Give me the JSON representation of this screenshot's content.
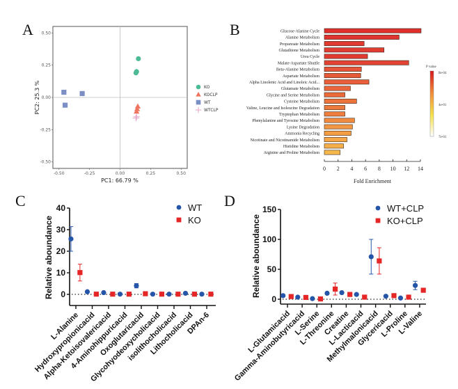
{
  "chart_data": [
    {
      "panel": "A",
      "type": "scatter",
      "title": "",
      "xlabel": "PC1:  66.79 %",
      "ylabel": "PC2:  25.3 %",
      "xlim": [
        -0.55,
        0.55
      ],
      "ylim": [
        -0.55,
        0.55
      ],
      "xticks": [
        "-0.50",
        "-0.25",
        "0.00",
        "0.25",
        "0.50"
      ],
      "xtick_values": [
        -0.5,
        -0.25,
        0,
        0.25,
        0.5
      ],
      "yticks": [
        "0.50",
        "0.25",
        "0.00",
        "-0.25",
        "-0.50"
      ],
      "ytick_values": [
        0.5,
        0.25,
        0,
        -0.25,
        -0.5
      ],
      "grid": false,
      "reference_lines": {
        "x": 0,
        "y": 0
      },
      "legend_position": "right",
      "series": [
        {
          "name": "KO",
          "marker": "circle",
          "color": "#4dbb95",
          "points": [
            [
              0.15,
              0.3
            ],
            [
              0.135,
              0.2
            ],
            [
              0.13,
              0.19
            ]
          ]
        },
        {
          "name": "KOCLP",
          "marker": "triangle",
          "color": "#ef7560",
          "points": [
            [
              0.145,
              -0.07
            ],
            [
              0.14,
              -0.09
            ],
            [
              0.135,
              -0.11
            ]
          ]
        },
        {
          "name": "WT",
          "marker": "square",
          "color": "#7b8fc4",
          "points": [
            [
              -0.46,
              0.04
            ],
            [
              -0.31,
              0.03
            ],
            [
              -0.45,
              -0.06
            ]
          ]
        },
        {
          "name": "WTCLP",
          "marker": "plus",
          "color": "#e4a3c6",
          "points": [
            [
              0.13,
              -0.16
            ],
            [
              0.135,
              -0.15
            ]
          ]
        }
      ]
    },
    {
      "panel": "B",
      "type": "bar",
      "orientation": "horizontal",
      "title": "",
      "xlabel": "Fold Enrichment",
      "ylabel": "",
      "xlim": [
        0,
        14
      ],
      "xticks": [
        "0",
        "2",
        "4",
        "6",
        "8",
        "10",
        "12",
        "14"
      ],
      "xtick_values": [
        0,
        2,
        4,
        6,
        8,
        10,
        12,
        14
      ],
      "categories": [
        "Glucose-Alanine Cycle",
        "Alanine Metabolism",
        "Propanoate Metabolism",
        "Glutathione Metabolism",
        "Urea Cycle",
        "Malate-Aspartate Shuttle",
        "Beta-Alanine Metabolism",
        "Aspartate Metabolism",
        "Alpha Linolenic Acid and Linoleic Acid...",
        "Glutamate Metabolism",
        "Glycine and Serine Metabolism",
        "Cysteine Metabolism",
        "Valine, Leucine and Isoleucine Degradation",
        "Tryptophan Metabolism",
        "Phenylalanine and Tyrosine Metabolism",
        "Lysine Degradation",
        "Ammonia Recycling",
        "Nicotinate and Nicotinamide Metabolism",
        "Histidine Metabolism",
        "Arginine and Proline Metabolism"
      ],
      "values": [
        14.1,
        10.9,
        5.8,
        8.7,
        6.3,
        12.3,
        5.4,
        5.3,
        6.5,
        3.8,
        3.0,
        4.7,
        3.0,
        3.0,
        4.4,
        4.1,
        3.9,
        3.3,
        2.8,
        2.3
      ],
      "bar_colors": [
        "#de2f2c",
        "#df3430",
        "#e03a31",
        "#e03c32",
        "#df3b31",
        "#e24434",
        "#e65537",
        "#e75a38",
        "#e85e39",
        "#ea653a",
        "#ea6a3a",
        "#ec743c",
        "#ed7a3d",
        "#ee7e3d",
        "#f08a3f",
        "#f29641",
        "#f49d43",
        "#f5a646",
        "#f5ae48",
        "#f4b74b"
      ],
      "colorbar": {
        "title": "P value",
        "labels": [
          "8e-04",
          "4e-01",
          "7e-01"
        ],
        "colors": [
          "#d7191c",
          "#f28c3b",
          "#f5e14a",
          "#ffffff"
        ]
      }
    },
    {
      "panel": "C",
      "type": "scatter",
      "title": "",
      "xlabel": "",
      "ylabel": "Relative aboundance",
      "ylim": [
        -4,
        40
      ],
      "yticks": [
        "0",
        "10",
        "20",
        "30",
        "40"
      ],
      "ytick_values": [
        0,
        10,
        20,
        30,
        40
      ],
      "grid": false,
      "reference_line_y": 0,
      "legend_position": "top-right",
      "categories": [
        "L-Alanine",
        "Hydroxypropionicacid",
        "Alpha-Ketoisovalericacid",
        "4-Aminohippuricacid",
        "Oxoglutaricacid",
        "Glycohyodeoxycholicacid",
        "isolithocholicacid",
        "Lithocholicacid",
        "DPAn-6"
      ],
      "series": [
        {
          "name": "WT",
          "marker": "circle",
          "color": "#2455a8",
          "values": [
            25.7,
            1.2,
            0.8,
            0.1,
            4.0,
            0.1,
            0.1,
            0.5,
            0.1
          ],
          "error": [
            5.7,
            0.3,
            0.2,
            0.1,
            1.0,
            0.1,
            0.1,
            0.2,
            0.1
          ]
        },
        {
          "name": "KO",
          "marker": "square",
          "color": "#e52626",
          "values": [
            10.1,
            0.1,
            0.1,
            0.1,
            0.3,
            0.1,
            0.1,
            0.1,
            0.1
          ],
          "error": [
            3.9,
            0.1,
            0.1,
            0.1,
            0.1,
            0.1,
            0.1,
            0.1,
            0.1
          ]
        }
      ]
    },
    {
      "panel": "D",
      "type": "scatter",
      "title": "",
      "xlabel": "",
      "ylabel": "Relative aboundance",
      "ylim": [
        -10,
        150
      ],
      "yticks": [
        "0",
        "50",
        "100",
        "150"
      ],
      "ytick_values": [
        0,
        50,
        100,
        150
      ],
      "grid": false,
      "reference_line_y": 0,
      "legend_position": "top-right",
      "categories": [
        "L-Glutamicacid",
        "Gamma-Aminobutyricacid",
        "L-Serine",
        "L-Threonine",
        "Creatine",
        "L-Lacticacid",
        "Methylmalonicacid",
        "Glycericacid",
        "L-Proline",
        "L-Valine"
      ],
      "series": [
        {
          "name": "WT+CLP",
          "marker": "circle",
          "color": "#2455a8",
          "values": [
            6,
            3.5,
            1,
            10,
            11,
            8,
            71,
            5,
            2,
            23
          ],
          "error": [
            1,
            0.8,
            0.5,
            2,
            1.5,
            1.5,
            29,
            1,
            0.8,
            7
          ]
        },
        {
          "name": "KO+CLP",
          "marker": "square",
          "color": "#e52626",
          "values": [
            4.5,
            3,
            0.5,
            17,
            8,
            3.5,
            64,
            6,
            3.5,
            15
          ],
          "error": [
            1,
            0.8,
            0.4,
            10,
            1.5,
            1,
            22,
            1,
            1,
            1.5
          ]
        }
      ]
    }
  ],
  "panels": {
    "A": {
      "letter": "A"
    },
    "B": {
      "letter": "B"
    },
    "C": {
      "letter": "C"
    },
    "D": {
      "letter": "D"
    }
  }
}
